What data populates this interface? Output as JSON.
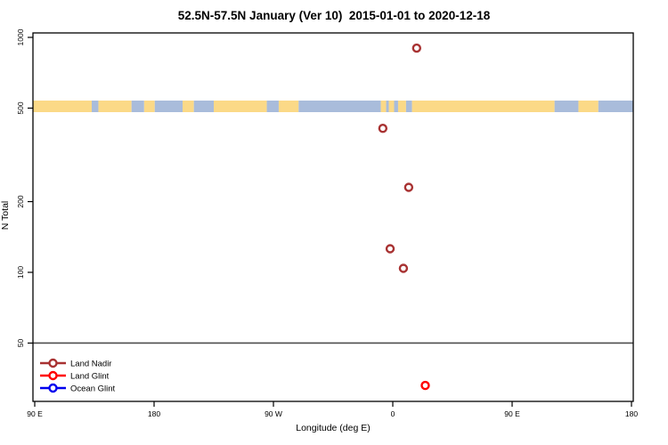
{
  "chart_data": {
    "type": "scatter",
    "title": "52.5N-57.5N January (Ver 10)  2015-01-01 to 2020-12-18",
    "xlabel": "Longitude (deg E)",
    "ylabel": "N Total",
    "x_axis": {
      "unit": "deg E (wrapped, 90E eastward to 180)",
      "ticks": [
        {
          "label": "90 E",
          "deg": 90
        },
        {
          "label": "180",
          "deg": 180
        },
        {
          "label": "90 W",
          "deg": 270
        },
        {
          "label": "0",
          "deg": 360
        },
        {
          "label": "90 E",
          "deg": 450
        },
        {
          "label": "180",
          "deg": 540
        }
      ]
    },
    "y_axis": {
      "scale": "log",
      "ticks": [
        1000,
        500,
        200,
        100,
        50
      ],
      "range": [
        28,
        1050
      ]
    },
    "reference_line": {
      "n": 50,
      "color": "#4D4D4D"
    },
    "map_strip": {
      "description": "land/ocean map band at 52.5N-57.5N",
      "n_center": 505,
      "n_span": [
        481,
        538
      ],
      "land_color": "#FBD987",
      "ocean_color": "#A9BCDB",
      "segments": [
        {
          "from": 88.7,
          "to": 133,
          "surface": "land"
        },
        {
          "from": 133,
          "to": 138,
          "surface": "ocean"
        },
        {
          "from": 138,
          "to": 163,
          "surface": "land"
        },
        {
          "from": 163,
          "to": 172.5,
          "surface": "ocean"
        },
        {
          "from": 172.5,
          "to": 180.5,
          "surface": "land"
        },
        {
          "from": 180.5,
          "to": 201.5,
          "surface": "ocean"
        },
        {
          "from": 201.5,
          "to": 210,
          "surface": "land"
        },
        {
          "from": 210,
          "to": 225,
          "surface": "ocean"
        },
        {
          "from": 225,
          "to": 265,
          "surface": "land"
        },
        {
          "from": 265,
          "to": 274,
          "surface": "ocean"
        },
        {
          "from": 274,
          "to": 289,
          "surface": "land"
        },
        {
          "from": 289,
          "to": 351,
          "surface": "ocean"
        },
        {
          "from": 351,
          "to": 355,
          "surface": "land"
        },
        {
          "from": 355,
          "to": 357,
          "surface": "ocean"
        },
        {
          "from": 357,
          "to": 361,
          "surface": "land"
        },
        {
          "from": 361,
          "to": 364,
          "surface": "ocean"
        },
        {
          "from": 364,
          "to": 370,
          "surface": "land"
        },
        {
          "from": 370,
          "to": 374.5,
          "surface": "ocean"
        },
        {
          "from": 374.5,
          "to": 482,
          "surface": "land"
        },
        {
          "from": 482,
          "to": 500,
          "surface": "ocean"
        },
        {
          "from": 500,
          "to": 515,
          "surface": "land"
        },
        {
          "from": 515,
          "to": 541.3,
          "surface": "ocean"
        }
      ]
    },
    "series": [
      {
        "name": "Land Nadir",
        "color": "#A83232",
        "points": [
          {
            "lon": 18,
            "n": 900
          },
          {
            "lon": -7.5,
            "n": 410
          },
          {
            "lon": 12,
            "n": 230
          },
          {
            "lon": -2,
            "n": 126
          },
          {
            "lon": 8,
            "n": 104
          }
        ]
      },
      {
        "name": "Land Glint",
        "color": "#FF0000",
        "points": [
          {
            "lon": 24.5,
            "n": 33
          }
        ]
      },
      {
        "name": "Ocean Glint",
        "color": "#0000EE",
        "points": []
      }
    ]
  },
  "legend": {
    "items": [
      {
        "label": "Land Nadir",
        "color": "#A83232"
      },
      {
        "label": "Land Glint",
        "color": "#FF0000"
      },
      {
        "label": "Ocean Glint",
        "color": "#0000EE"
      }
    ]
  }
}
